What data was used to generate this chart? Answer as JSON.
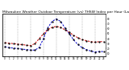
{
  "title": "Milwaukee Weather Outdoor Temperature (vs) THSW Index per Hour (Last 24 Hours)",
  "title_fontsize": 3.2,
  "background_color": "#ffffff",
  "grid_color": "#888888",
  "hours": [
    0,
    1,
    2,
    3,
    4,
    5,
    6,
    7,
    8,
    9,
    10,
    11,
    12,
    13,
    14,
    15,
    16,
    17,
    18,
    19,
    20,
    21,
    22,
    23
  ],
  "temp": [
    32,
    31,
    30,
    29,
    28,
    27,
    26,
    30,
    40,
    50,
    58,
    63,
    65,
    63,
    58,
    53,
    47,
    42,
    38,
    36,
    34,
    33,
    34,
    34
  ],
  "thsw": [
    24,
    22,
    21,
    20,
    19,
    18,
    17,
    17,
    22,
    40,
    62,
    75,
    80,
    75,
    62,
    50,
    38,
    28,
    22,
    18,
    15,
    13,
    14,
    14
  ],
  "temp_color": "#cc0000",
  "thsw_color": "#0000cc",
  "dot_color": "#000000",
  "ylim": [
    5,
    90
  ],
  "yticks_right": [
    10,
    20,
    30,
    40,
    50,
    60,
    70,
    80
  ],
  "ytick_labels_right": [
    "10",
    "20",
    "30",
    "40",
    "50",
    "60",
    "70",
    "80"
  ],
  "vline_hours": [
    0,
    3,
    6,
    9,
    12,
    15,
    18,
    21
  ],
  "line_width": 0.7,
  "dot_size": 1.2,
  "border_color": "#000000",
  "figwidth": 1.6,
  "figheight": 0.87,
  "dpi": 100
}
